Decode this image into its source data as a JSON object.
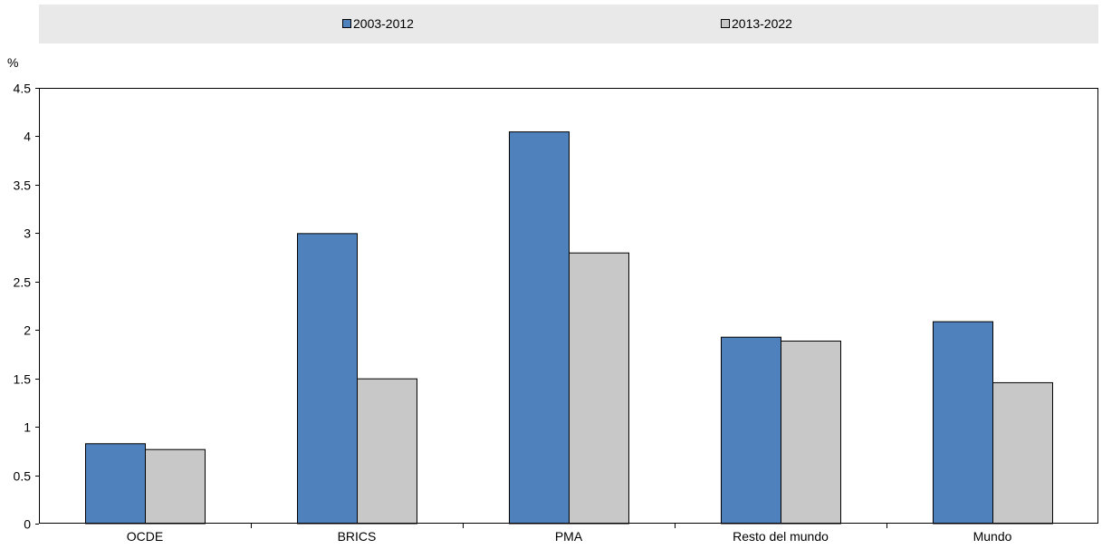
{
  "chart_data": {
    "type": "bar",
    "ylabel": "%",
    "ylim": [
      0,
      4.5
    ],
    "yticks": [
      "0",
      "0.5",
      "1",
      "1.5",
      "2",
      "2.5",
      "3",
      "3.5",
      "4",
      "4.5"
    ],
    "categories": [
      "OCDE",
      "BRICS",
      "PMA",
      "Resto del mundo",
      "Mundo"
    ],
    "series": [
      {
        "name": "2003-2012",
        "color": "#4f81bd",
        "values": [
          0.83,
          3.0,
          4.05,
          1.93,
          2.09
        ]
      },
      {
        "name": "2013-2022",
        "color": "#c8c8c8",
        "values": [
          0.77,
          1.5,
          2.8,
          1.89,
          1.46
        ]
      }
    ],
    "legend_position": "top",
    "grid": false
  }
}
